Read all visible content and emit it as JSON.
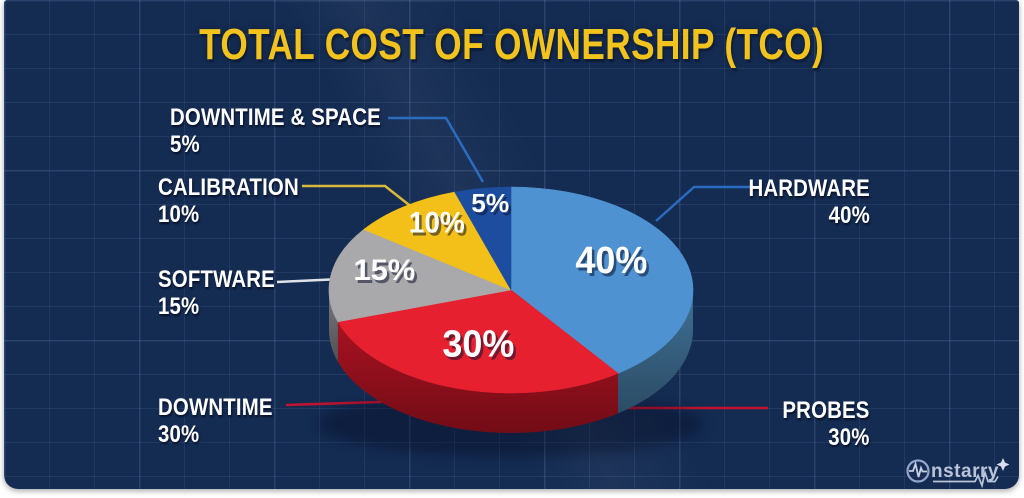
{
  "title": "TOTAL COST OF OWNERSHIP (TCO)",
  "chart_data": {
    "type": "pie",
    "title": "TOTAL COST OF OWNERSHIP (TCO)",
    "unit": "percent",
    "total": 100,
    "start_angle_deg": 0,
    "direction": "clockwise",
    "style": "3d-pie",
    "legend_position": "callouts",
    "slices": [
      {
        "name": "HARDWARE",
        "value": 40,
        "pct": "40%",
        "color": "#4e92d2",
        "side_color": "#3f7095"
      },
      {
        "name": "PROBES / DOWNTIME",
        "value": 30,
        "pct": "30%",
        "color": "#e6202f",
        "side_color": "#a81220"
      },
      {
        "name": "SOFTWARE",
        "value": 15,
        "pct": "15%",
        "color": "#a9a9ab",
        "side_color": "#77777c"
      },
      {
        "name": "CALIBRATION",
        "value": 10,
        "pct": "10%",
        "color": "#f3c019",
        "side_color": "#b08908"
      },
      {
        "name": "DOWNTIME & SPACE",
        "value": 5,
        "pct": "5%",
        "color": "#1c4d9f",
        "side_color": "#123468"
      }
    ],
    "callouts": [
      {
        "label": "DOWNTIME & SPACE",
        "pct": "5%",
        "line_color": "#2a6cc0"
      },
      {
        "label": "CALIBRATION",
        "pct": "10%",
        "line_color": "#d8b93c"
      },
      {
        "label": "SOFTWARE",
        "pct": "15%",
        "line_color": "#dfe3e8"
      },
      {
        "label": "DOWNTIME",
        "pct": "30%",
        "line_color": "#c11330"
      },
      {
        "label": "HARDWARE",
        "pct": "40%",
        "line_color": "#2a6cc0"
      },
      {
        "label": "PROBES",
        "pct": "30%",
        "line_color": "#c11330"
      }
    ]
  },
  "colors": {
    "background": "#142b52",
    "frame": "#ffffff",
    "title": "#f2c31c",
    "label_text": "#ffffff"
  },
  "logo": {
    "text": "nstarry",
    "icon": "pulse-circle-icon"
  }
}
